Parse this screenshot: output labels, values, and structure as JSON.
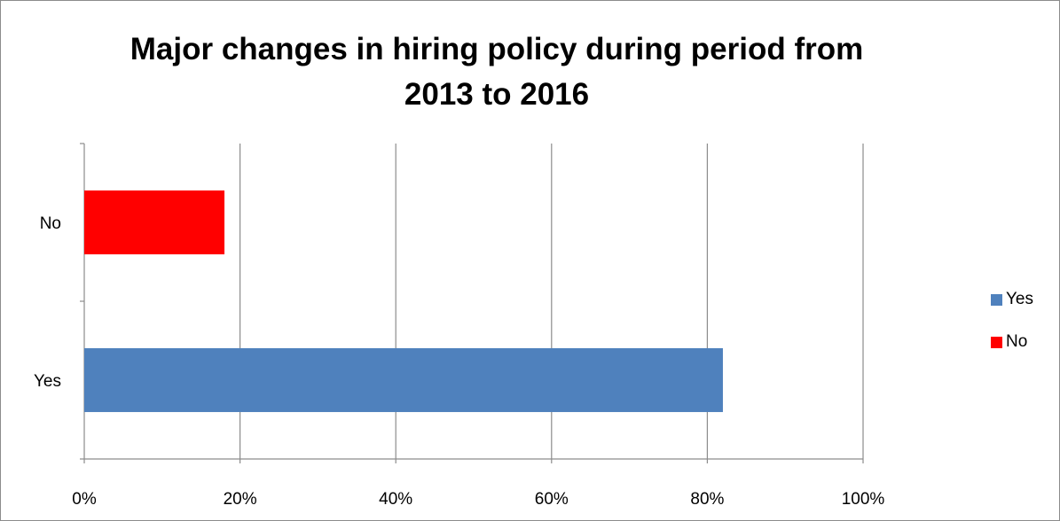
{
  "chart_data": {
    "type": "bar",
    "orientation": "horizontal",
    "title_lines": [
      "Major changes in hiring policy during period from",
      "2013 to 2016"
    ],
    "categories": [
      "Yes",
      "No"
    ],
    "values": [
      82,
      18
    ],
    "value_format": "percent",
    "colors": [
      "#4f81bd",
      "#ff0000"
    ],
    "xlim": [
      0,
      100
    ],
    "x_ticks": [
      0,
      20,
      40,
      60,
      80,
      100
    ],
    "x_tick_labels": [
      "0%",
      "20%",
      "40%",
      "60%",
      "80%",
      "100%"
    ],
    "grid": "vertical",
    "legend": {
      "placement": "right",
      "entries": [
        {
          "label": "Yes",
          "color": "#4f81bd"
        },
        {
          "label": "No",
          "color": "#ff0000"
        }
      ]
    }
  }
}
